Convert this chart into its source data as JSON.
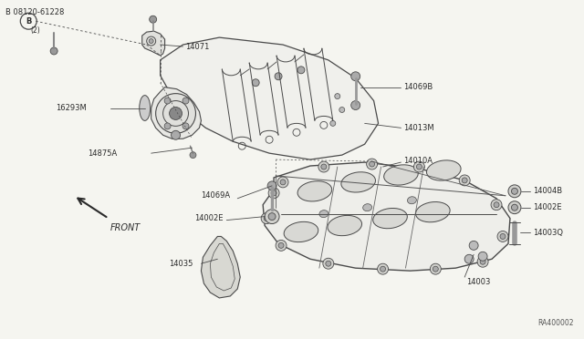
{
  "background_color": "#f5f5f0",
  "diagram_id": "RA400002",
  "line_color": "#4a4a4a",
  "text_color": "#2a2a2a",
  "gray": "#888888",
  "light_gray": "#cccccc",
  "figsize": [
    6.4,
    3.72
  ],
  "dpi": 100,
  "labels": {
    "bolt_b": "B 08120-61228",
    "bolt_b2": "(2)",
    "l14071": "14071",
    "l16293M": "16293M",
    "l14875A": "14875A",
    "l14069B": "14069B",
    "l14013M": "14013M",
    "l14069A": "14069A",
    "l14002E_l": "14002E",
    "l14035": "14035",
    "l14010A": "14010A",
    "l14004B": "14004B",
    "l14002E_r": "14002E",
    "l14003Q": "14003Q",
    "l14003": "14003",
    "front": "FRONT",
    "ref": "RA400002"
  }
}
